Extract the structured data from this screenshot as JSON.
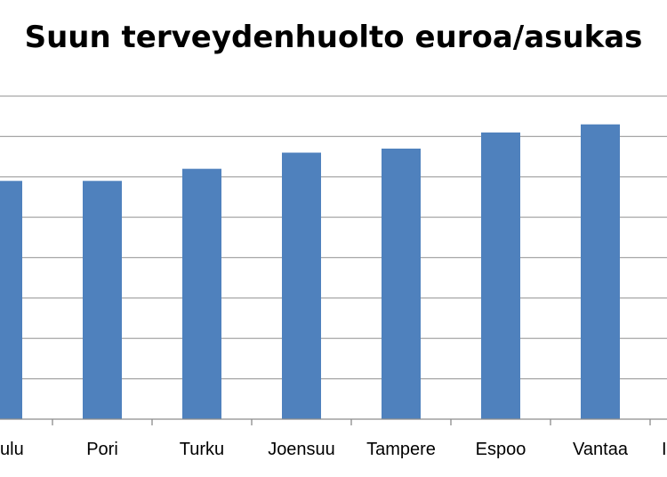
{
  "chart_data": {
    "type": "bar",
    "title": "Suun terveydenhuolto euroa/asukas",
    "categories": [
      "Oulu",
      "Pori",
      "Turku",
      "Joensuu",
      "Tampere",
      "Espoo",
      "Vantaa",
      ""
    ],
    "category_labels_visible": [
      "ulu",
      "Pori",
      "Turku",
      "Joensuu",
      "Tampere",
      "Espoo",
      "Vantaa",
      "I"
    ],
    "values": [
      59,
      59,
      62,
      66,
      67,
      71,
      73,
      null
    ],
    "ylim": [
      0,
      80
    ],
    "y_grid_step": 10,
    "grid": true,
    "bar_color": "#4f81bd",
    "gridline_color": "#a6a6a6",
    "axis_color": "#8c8c8c"
  }
}
